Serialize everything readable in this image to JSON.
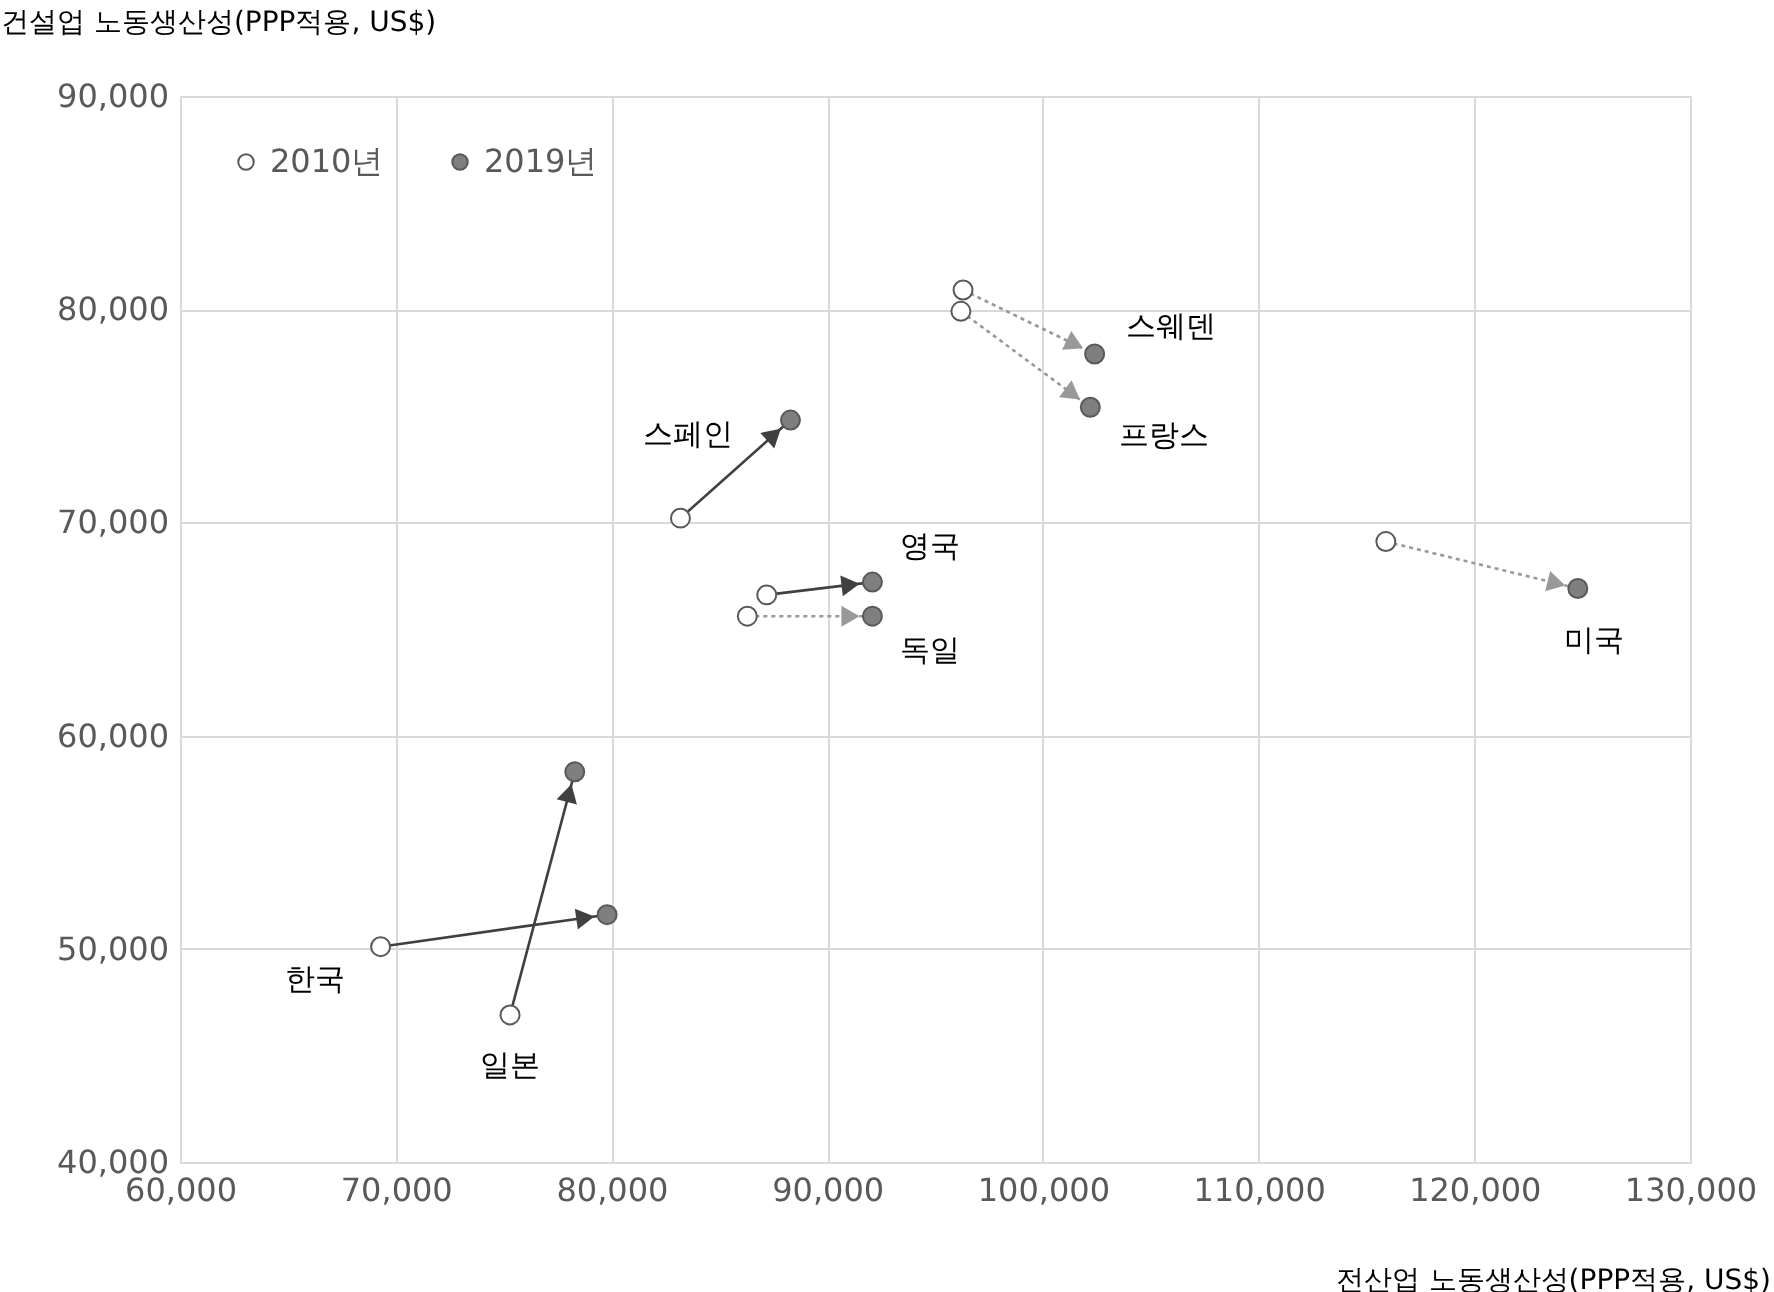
{
  "chart_data": {
    "type": "scatter",
    "xlabel": "전산업 노동생산성(PPP적용, US$)",
    "ylabel": "건설업 노동생산성(PPP적용, US$)",
    "xlim": [
      60000,
      130000
    ],
    "xticks": [
      {
        "value": 60000,
        "label": "60,000"
      },
      {
        "value": 70000,
        "label": "70,000"
      },
      {
        "value": 80000,
        "label": "80,000"
      },
      {
        "value": 90000,
        "label": "90,000"
      },
      {
        "value": 100000,
        "label": "100,000"
      },
      {
        "value": 110000,
        "label": "110,000"
      },
      {
        "value": 120000,
        "label": "120,000"
      },
      {
        "value": 130000,
        "label": "130,000"
      }
    ],
    "ylim": [
      40000,
      90000
    ],
    "yticks": [
      {
        "value": 40000,
        "label": "40,000"
      },
      {
        "value": 50000,
        "label": "50,000"
      },
      {
        "value": 60000,
        "label": "60,000"
      },
      {
        "value": 70000,
        "label": "70,000"
      },
      {
        "value": 80000,
        "label": "80,000"
      },
      {
        "value": 90000,
        "label": "90,000"
      }
    ],
    "grid": true,
    "legend": "top left",
    "series": [
      {
        "type": "line",
        "color": "#404040",
        "line_style": "solid",
        "x": [
          69300,
          79800
        ],
        "values": [
          50100,
          51600
        ]
      },
      {
        "type": "line",
        "color": "#404040",
        "line_style": "solid",
        "x": [
          75300,
          78300
        ],
        "values": [
          46900,
          58300
        ]
      },
      {
        "type": "line",
        "color": "#404040",
        "line_style": "solid",
        "x": [
          83200,
          88300
        ],
        "values": [
          70200,
          74800
        ]
      },
      {
        "type": "line",
        "color": "#404040",
        "line_style": "solid",
        "x": [
          87200,
          92100
        ],
        "values": [
          66600,
          67200
        ]
      },
      {
        "type": "line",
        "color": "#999999",
        "line_style": "dotted",
        "x": [
          86300,
          92100
        ],
        "values": [
          65600,
          65600
        ]
      },
      {
        "type": "line",
        "color": "#999999",
        "line_style": "dotted",
        "x": [
          96300,
          102400
        ],
        "values": [
          80900,
          77900
        ]
      },
      {
        "type": "line",
        "color": "#999999",
        "line_style": "dotted",
        "x": [
          96200,
          102200
        ],
        "values": [
          79900,
          75400
        ]
      },
      {
        "type": "line",
        "color": "#999999",
        "line_style": "dotted",
        "x": [
          115900,
          124800
        ],
        "values": [
          69100,
          66900
        ]
      },
      {
        "name": "2010년",
        "marker": "circle",
        "color": "#ffffff",
        "x": [
          69300,
          75300,
          83200,
          87200,
          86300,
          96300,
          96200,
          115900
        ],
        "values": [
          50100,
          46900,
          70200,
          66600,
          65600,
          80900,
          79900,
          69100
        ]
      },
      {
        "name": "2019년",
        "marker": "circle",
        "color": "#7f7f7f",
        "x": [
          79800,
          78300,
          88300,
          92100,
          92100,
          102400,
          102200,
          124800
        ],
        "values": [
          51600,
          58300,
          74800,
          67200,
          65600,
          77900,
          75400,
          66900
        ]
      }
    ],
    "annotations": [
      {
        "text": "한국",
        "x": 69300,
        "y": 50100
      },
      {
        "text": "일본",
        "x": 75300,
        "y": 46900
      },
      {
        "text": "스페인",
        "x": 88300,
        "y": 74800
      },
      {
        "text": "영국",
        "x": 92100,
        "y": 67200
      },
      {
        "text": "독일",
        "x": 92100,
        "y": 65600
      },
      {
        "text": "스웨덴",
        "x": 102400,
        "y": 77900
      },
      {
        "text": "프랑스",
        "x": 102200,
        "y": 75400
      },
      {
        "text": "미국",
        "x": 124800,
        "y": 66900
      }
    ]
  }
}
